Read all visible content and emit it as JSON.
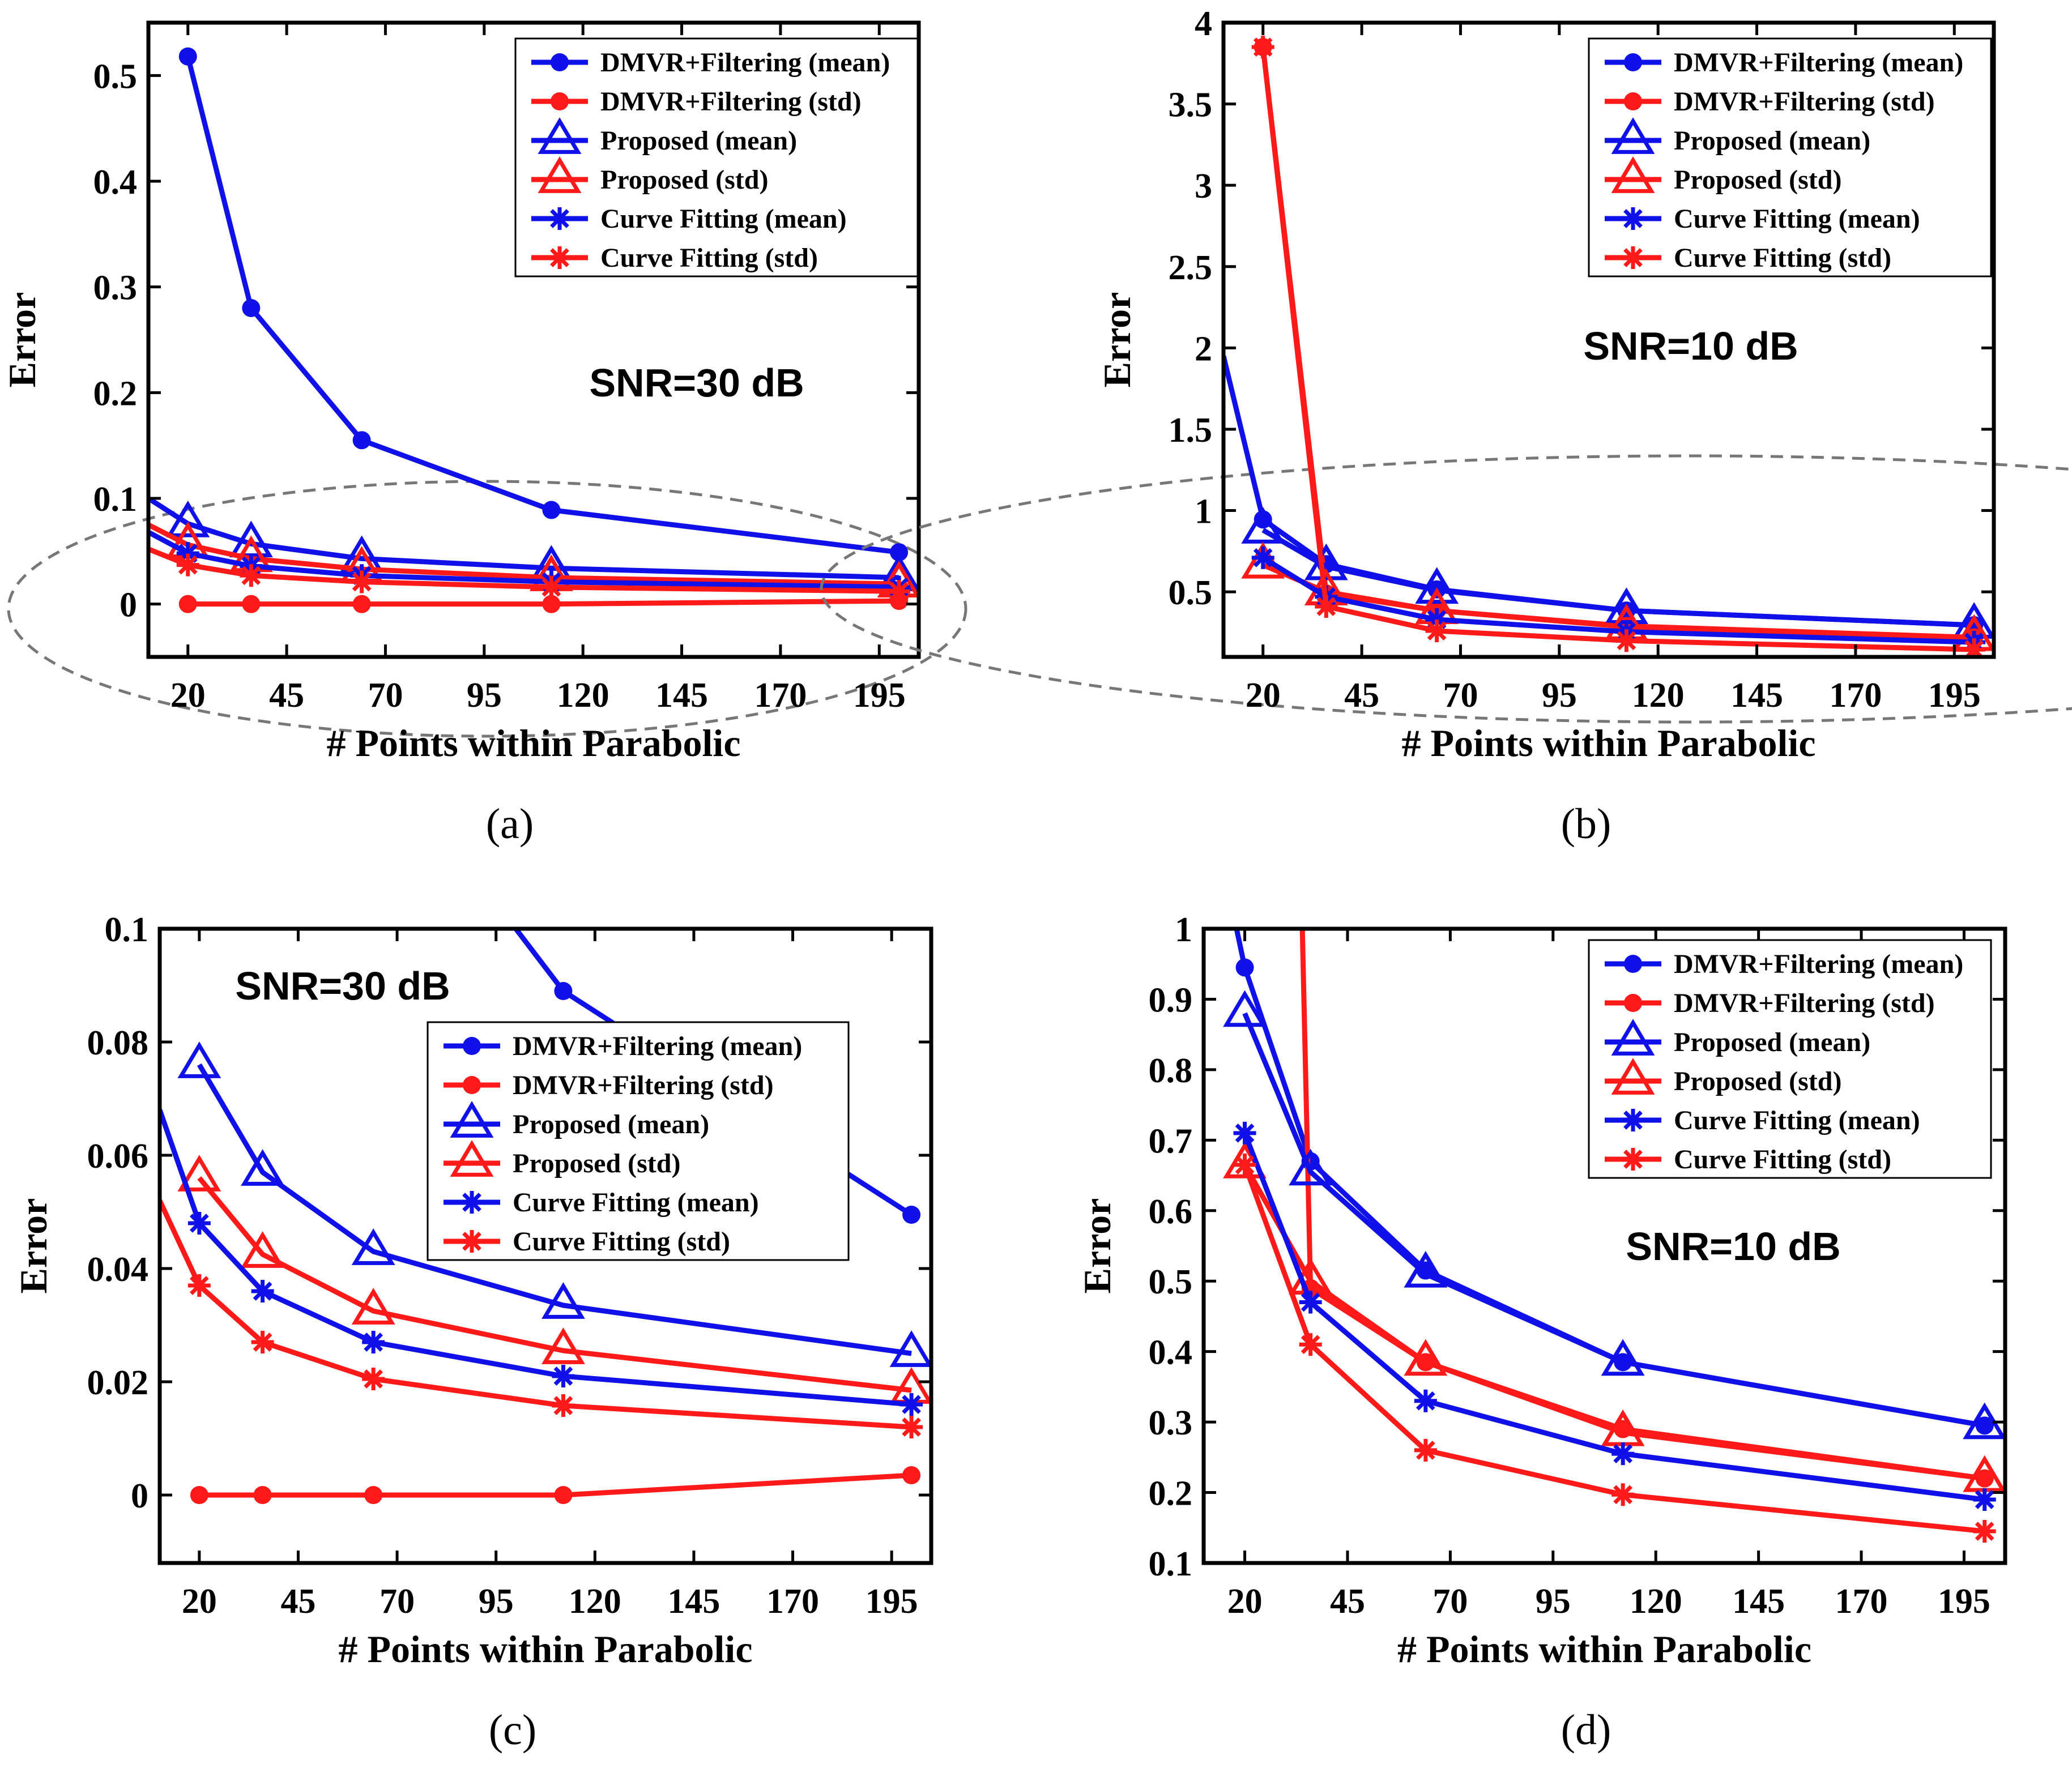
{
  "chart_data": [
    {
      "panel": "(a)",
      "type": "line",
      "xlabel": "# Points within Parabolic",
      "ylabel": "Error",
      "annotation": "SNR=30 dB",
      "xlim": [
        10,
        205
      ],
      "ylim": [
        -0.05,
        0.55
      ],
      "xticks": [
        20,
        45,
        70,
        95,
        120,
        145,
        170,
        195
      ],
      "yticks": [
        0,
        0.1,
        0.2,
        0.3,
        0.4,
        0.5
      ],
      "ytick_labels": [
        "0",
        "0.1",
        "0.2",
        "0.3",
        "0.4",
        "0.5"
      ],
      "legend_position": "top-right",
      "series": [
        {
          "name": "DMVR+Filtering (mean)",
          "color": "#1010e8",
          "marker": "dot",
          "x": [
            20,
            36,
            64,
            112,
            200
          ],
          "y": [
            0.518,
            0.28,
            0.155,
            0.089,
            0.049
          ]
        },
        {
          "name": "DMVR+Filtering (std)",
          "color": "#ff1a1a",
          "marker": "dot",
          "x": [
            20,
            36,
            64,
            112,
            200
          ],
          "y": [
            0.0,
            0.0,
            0.0,
            0.0,
            0.003
          ]
        },
        {
          "name": "Proposed (mean)",
          "color": "#1010e8",
          "marker": "triangle",
          "x": [
            10,
            20,
            36,
            64,
            112,
            200
          ],
          "y": [
            0.1,
            0.076,
            0.057,
            0.043,
            0.034,
            0.025
          ]
        },
        {
          "name": "Proposed (std)",
          "color": "#ff1a1a",
          "marker": "triangle",
          "x": [
            10,
            20,
            36,
            64,
            112,
            200
          ],
          "y": [
            0.075,
            0.056,
            0.043,
            0.033,
            0.025,
            0.019
          ]
        },
        {
          "name": "Curve Fitting (mean)",
          "color": "#1010e8",
          "marker": "star",
          "x": [
            10,
            20,
            36,
            64,
            112,
            200
          ],
          "y": [
            0.068,
            0.048,
            0.036,
            0.027,
            0.021,
            0.016
          ]
        },
        {
          "name": "Curve Fitting (std)",
          "color": "#ff1a1a",
          "marker": "star",
          "x": [
            10,
            20,
            36,
            64,
            112,
            200
          ],
          "y": [
            0.052,
            0.037,
            0.027,
            0.021,
            0.016,
            0.012
          ]
        }
      ],
      "highlight_ellipse": true
    },
    {
      "panel": "(b)",
      "type": "line",
      "xlabel": "# Points within Parabolic",
      "ylabel": "Error",
      "annotation": "SNR=10 dB",
      "xlim": [
        10,
        205
      ],
      "ylim": [
        0.1,
        4.0
      ],
      "xticks": [
        20,
        45,
        70,
        95,
        120,
        145,
        170,
        195
      ],
      "yticks": [
        0.5,
        1,
        1.5,
        2,
        2.5,
        3,
        3.5,
        4
      ],
      "ytick_labels": [
        "0.5",
        "1",
        "1.5",
        "2",
        "2.5",
        "3",
        "3.5",
        "4"
      ],
      "legend_position": "top-right",
      "series": [
        {
          "name": "DMVR+Filtering (mean)",
          "color": "#1010e8",
          "marker": "dot",
          "x": [
            10,
            20,
            36,
            64,
            112,
            200
          ],
          "y": [
            1.95,
            0.945,
            0.67,
            0.515,
            0.385,
            0.295
          ]
        },
        {
          "name": "DMVR+Filtering (std)",
          "color": "#ff1a1a",
          "marker": "dot",
          "x": [
            20,
            36,
            64,
            112,
            200
          ],
          "y": [
            3.85,
            0.49,
            0.385,
            0.29,
            0.22
          ]
        },
        {
          "name": "Proposed (mean)",
          "color": "#1010e8",
          "marker": "triangle",
          "x": [
            20,
            36,
            64,
            112,
            200
          ],
          "y": [
            0.88,
            0.655,
            0.51,
            0.385,
            0.295
          ]
        },
        {
          "name": "Proposed (std)",
          "color": "#ff1a1a",
          "marker": "triangle",
          "x": [
            20,
            36,
            64,
            112,
            200
          ],
          "y": [
            0.665,
            0.5,
            0.385,
            0.285,
            0.22
          ]
        },
        {
          "name": "Curve Fitting (mean)",
          "color": "#1010e8",
          "marker": "star",
          "x": [
            20,
            36,
            64,
            112,
            200
          ],
          "y": [
            0.71,
            0.47,
            0.33,
            0.255,
            0.19
          ]
        },
        {
          "name": "Curve Fitting (std)",
          "color": "#ff1a1a",
          "marker": "star",
          "x": [
            20,
            36,
            64,
            112,
            200
          ],
          "y": [
            3.85,
            0.41,
            0.26,
            0.2,
            0.145
          ]
        }
      ],
      "highlight_ellipse": true
    },
    {
      "panel": "(c)",
      "type": "line",
      "xlabel": "# Points within Parabolic",
      "ylabel": "Error",
      "annotation": "SNR=30 dB",
      "xlim": [
        10,
        205
      ],
      "ylim": [
        -0.012,
        0.1
      ],
      "xticks": [
        20,
        45,
        70,
        95,
        120,
        145,
        170,
        195
      ],
      "yticks": [
        0,
        0.02,
        0.04,
        0.06,
        0.08,
        0.1
      ],
      "ytick_labels": [
        "0",
        "0.02",
        "0.04",
        "0.06",
        "0.08",
        "0.1"
      ],
      "legend_position": "center",
      "series": [
        {
          "name": "DMVR+Filtering (mean)",
          "color": "#1010e8",
          "marker": "dot",
          "x": [
            100,
            112,
            200
          ],
          "y": [
            0.1,
            0.089,
            0.0495
          ]
        },
        {
          "name": "DMVR+Filtering (std)",
          "color": "#ff1a1a",
          "marker": "dot",
          "x": [
            20,
            36,
            64,
            112,
            200
          ],
          "y": [
            0.0,
            0.0,
            0.0,
            0.0,
            0.0035
          ]
        },
        {
          "name": "Proposed (mean)",
          "color": "#1010e8",
          "marker": "triangle",
          "x": [
            20,
            36,
            64,
            112,
            200
          ],
          "y": [
            0.076,
            0.057,
            0.043,
            0.0335,
            0.025
          ]
        },
        {
          "name": "Proposed (std)",
          "color": "#ff1a1a",
          "marker": "triangle",
          "x": [
            20,
            36,
            64,
            112,
            200
          ],
          "y": [
            0.056,
            0.0425,
            0.0325,
            0.0255,
            0.0185
          ]
        },
        {
          "name": "Curve Fitting (mean)",
          "color": "#1010e8",
          "marker": "star",
          "x": [
            10,
            20,
            36,
            64,
            112,
            200
          ],
          "y": [
            0.068,
            0.048,
            0.036,
            0.027,
            0.021,
            0.016
          ]
        },
        {
          "name": "Curve Fitting (std)",
          "color": "#ff1a1a",
          "marker": "star",
          "x": [
            10,
            20,
            36,
            64,
            112,
            200
          ],
          "y": [
            0.052,
            0.037,
            0.027,
            0.0205,
            0.0158,
            0.012
          ]
        }
      ],
      "highlight_ellipse": false
    },
    {
      "panel": "(d)",
      "type": "line",
      "xlabel": "# Points within Parabolic",
      "ylabel": "Error",
      "annotation": "SNR=10 dB",
      "xlim": [
        10,
        205
      ],
      "ylim": [
        0.1,
        1.0
      ],
      "xticks": [
        20,
        45,
        70,
        95,
        120,
        145,
        170,
        195
      ],
      "yticks": [
        0.1,
        0.2,
        0.3,
        0.4,
        0.5,
        0.6,
        0.7,
        0.8,
        0.9,
        1
      ],
      "ytick_labels": [
        "0.1",
        "0.2",
        "0.3",
        "0.4",
        "0.5",
        "0.6",
        "0.7",
        "0.8",
        "0.9",
        "1"
      ],
      "legend_position": "top-right",
      "series": [
        {
          "name": "DMVR+Filtering (mean)",
          "color": "#1010e8",
          "marker": "dot",
          "x": [
            18,
            20,
            36,
            64,
            112,
            200
          ],
          "y": [
            1.0,
            0.945,
            0.67,
            0.515,
            0.385,
            0.295
          ]
        },
        {
          "name": "DMVR+Filtering (std)",
          "color": "#ff1a1a",
          "marker": "dot",
          "x": [
            34,
            36,
            64,
            112,
            200
          ],
          "y": [
            1.0,
            0.49,
            0.385,
            0.29,
            0.22
          ]
        },
        {
          "name": "Proposed (mean)",
          "color": "#1010e8",
          "marker": "triangle",
          "x": [
            20,
            36,
            64,
            112,
            200
          ],
          "y": [
            0.88,
            0.655,
            0.51,
            0.385,
            0.295
          ]
        },
        {
          "name": "Proposed (std)",
          "color": "#ff1a1a",
          "marker": "triangle",
          "x": [
            20,
            36,
            64,
            112,
            200
          ],
          "y": [
            0.665,
            0.5,
            0.385,
            0.285,
            0.22
          ]
        },
        {
          "name": "Curve Fitting (mean)",
          "color": "#1010e8",
          "marker": "star",
          "x": [
            20,
            36,
            64,
            112,
            200
          ],
          "y": [
            0.71,
            0.47,
            0.33,
            0.255,
            0.19
          ]
        },
        {
          "name": "Curve Fitting (std)",
          "color": "#ff1a1a",
          "marker": "star",
          "x": [
            20,
            36,
            64,
            112,
            200
          ],
          "y": [
            0.665,
            0.41,
            0.26,
            0.197,
            0.145
          ]
        }
      ],
      "highlight_ellipse": false
    }
  ]
}
